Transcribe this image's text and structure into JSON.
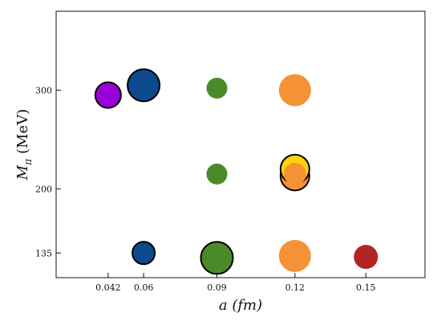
{
  "chart_data": {
    "type": "scatter",
    "xlabel": "a (fm)",
    "ylabel": "M_π (MeV)",
    "xlim": [
      0.02,
      0.176
    ],
    "ylim": [
      110,
      380
    ],
    "xticks": [
      {
        "value": 0.042,
        "label": "0.042"
      },
      {
        "value": 0.057,
        "label": "0.06"
      },
      {
        "value": 0.088,
        "label": "0.09"
      },
      {
        "value": 0.121,
        "label": "0.12"
      },
      {
        "value": 0.151,
        "label": "0.15"
      }
    ],
    "yticks": [
      {
        "value": 135,
        "label": "135"
      },
      {
        "value": 200,
        "label": "200"
      },
      {
        "value": 300,
        "label": "300"
      }
    ],
    "grid": false,
    "points": [
      {
        "x": 0.042,
        "y": 295,
        "size": 0.8,
        "color": "#9b00d6",
        "outlined": true
      },
      {
        "x": 0.057,
        "y": 305,
        "size": 1.0,
        "color": "#0b4a8e",
        "outlined": true
      },
      {
        "x": 0.057,
        "y": 135,
        "size": 0.7,
        "color": "#0b4a8e",
        "outlined": true
      },
      {
        "x": 0.088,
        "y": 302,
        "size": 0.65,
        "color": "#4a8a2a",
        "outlined": false
      },
      {
        "x": 0.088,
        "y": 215,
        "size": 0.65,
        "color": "#4a8a2a",
        "outlined": false
      },
      {
        "x": 0.088,
        "y": 130,
        "size": 1.0,
        "color": "#4a8a2a",
        "outlined": true
      },
      {
        "x": 0.121,
        "y": 300,
        "size": 1.0,
        "color": "#f59235",
        "outlined": false
      },
      {
        "x": 0.121,
        "y": 213,
        "size": 0.9,
        "color": "#f59235",
        "outlined": true
      },
      {
        "x": 0.121,
        "y": 220,
        "size": 0.9,
        "color": "#fcd20c",
        "outlined": true
      },
      {
        "x": 0.121,
        "y": 215,
        "size": 0.7,
        "color": "#f59235",
        "outlined": false
      },
      {
        "x": 0.121,
        "y": 132,
        "size": 1.0,
        "color": "#f59235",
        "outlined": false
      },
      {
        "x": 0.151,
        "y": 131,
        "size": 0.75,
        "color": "#b32323",
        "outlined": false
      }
    ]
  }
}
